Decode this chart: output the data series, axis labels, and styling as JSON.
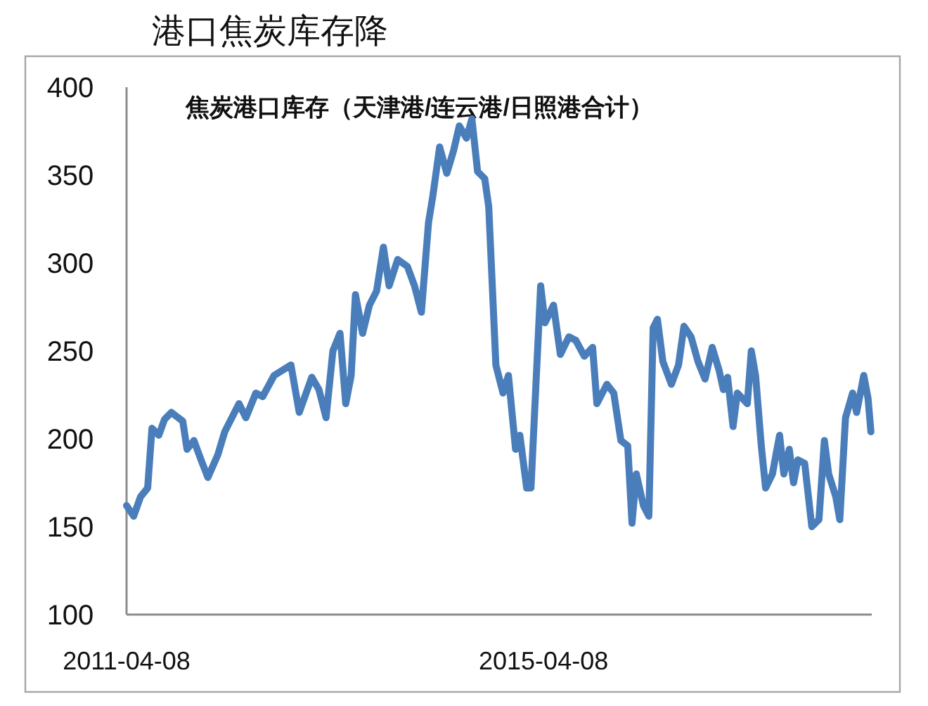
{
  "chart_data": {
    "type": "line",
    "title": "港口焦炭库存降",
    "subtitle": "焦炭港口库存（天津港/连云港/日照港合计）",
    "x": [
      "2011-04-08",
      "2011-05-03",
      "2011-05-27",
      "2011-06-21",
      "2011-07-06",
      "2011-07-30",
      "2011-08-19",
      "2011-09-12",
      "2011-10-22",
      "2011-11-06",
      "2011-11-30",
      "2011-12-25",
      "2012-01-18",
      "2012-02-22",
      "2012-03-17",
      "2012-05-06",
      "2012-05-30",
      "2012-07-04",
      "2012-07-28",
      "2012-09-06",
      "2012-11-04",
      "2012-12-03",
      "2013-01-16",
      "2013-02-10",
      "2013-03-07",
      "2013-03-31",
      "2013-04-25",
      "2013-05-15",
      "2013-06-03",
      "2013-06-18",
      "2013-07-13",
      "2013-08-06",
      "2013-08-31",
      "2013-09-24",
      "2013-10-14",
      "2013-11-13",
      "2013-12-17",
      "2014-01-11",
      "2014-02-04",
      "2014-03-01",
      "2014-03-16",
      "2014-04-09",
      "2014-05-04",
      "2014-05-28",
      "2014-06-17",
      "2014-07-12",
      "2014-07-31",
      "2014-08-20",
      "2014-09-14",
      "2014-09-28",
      "2014-10-23",
      "2014-11-17",
      "2014-12-06",
      "2014-12-31",
      "2015-01-15",
      "2015-02-08",
      "2015-02-23",
      "2015-03-29",
      "2015-04-13",
      "2015-05-13",
      "2015-06-06",
      "2015-07-06",
      "2015-07-30",
      "2015-08-29",
      "2015-09-27",
      "2015-10-12",
      "2015-11-16",
      "2015-12-10",
      "2016-01-04",
      "2016-01-28",
      "2016-02-12",
      "2016-02-27",
      "2016-03-23",
      "2016-04-11",
      "2016-04-26",
      "2016-05-11",
      "2016-05-30",
      "2016-06-29",
      "2016-07-24",
      "2016-08-12",
      "2016-09-06",
      "2016-09-30",
      "2016-10-25",
      "2016-11-19",
      "2016-12-13",
      "2016-12-28",
      "2017-01-12",
      "2017-01-31",
      "2017-02-15",
      "2017-03-22",
      "2017-04-05",
      "2017-04-20",
      "2017-05-10",
      "2017-05-25",
      "2017-06-18",
      "2017-07-13",
      "2017-07-28",
      "2017-08-16",
      "2017-08-31",
      "2017-09-15",
      "2017-10-09",
      "2017-11-03",
      "2017-11-28",
      "2017-12-17",
      "2018-01-01",
      "2018-01-26",
      "2018-02-09",
      "2018-03-01",
      "2018-03-26",
      "2018-04-09",
      "2018-05-04",
      "2018-05-19",
      "2018-05-29"
    ],
    "values": [
      162,
      156,
      167,
      172,
      206,
      202,
      211,
      215,
      210,
      194,
      199,
      188,
      178,
      191,
      204,
      220,
      212,
      226,
      224,
      236,
      242,
      215,
      235,
      228,
      212,
      250,
      260,
      220,
      236,
      282,
      260,
      276,
      284,
      309,
      287,
      302,
      298,
      287,
      272,
      323,
      338,
      366,
      351,
      364,
      378,
      371,
      382,
      352,
      348,
      332,
      242,
      226,
      236,
      194,
      202,
      172,
      172,
      287,
      266,
      276,
      248,
      258,
      256,
      247,
      252,
      220,
      231,
      226,
      199,
      196,
      152,
      180,
      162,
      156,
      263,
      268,
      244,
      231,
      242,
      264,
      258,
      244,
      234,
      252,
      239,
      228,
      235,
      207,
      226,
      220,
      250,
      236,
      196,
      172,
      180,
      202,
      180,
      194,
      175,
      188,
      186,
      150,
      154,
      199,
      180,
      167,
      154,
      212,
      226,
      215,
      236,
      223,
      204
    ],
    "color": "#4a7ebb",
    "xlim": [
      "2011-04-08",
      "2018-06-01"
    ],
    "xticks": [
      {
        "value": "2011-04-08",
        "label": "2011-04-08"
      },
      {
        "value": "2015-04-08",
        "label": "2015-04-08"
      }
    ],
    "ylim": [
      100,
      400
    ],
    "yticks": [
      100,
      150,
      200,
      250,
      300,
      350,
      400
    ],
    "grid": false,
    "legend": false,
    "marker": "none",
    "line_style": "solid"
  }
}
